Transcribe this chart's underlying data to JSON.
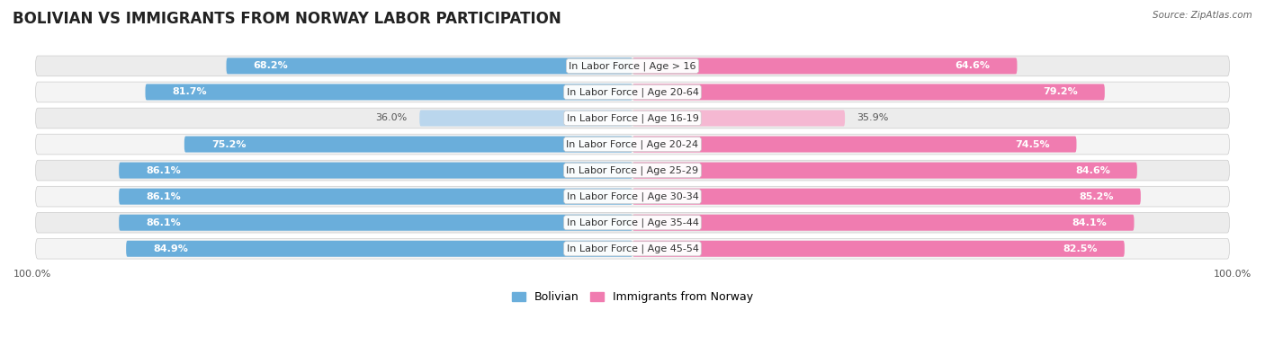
{
  "title": "BOLIVIAN VS IMMIGRANTS FROM NORWAY LABOR PARTICIPATION",
  "source": "Source: ZipAtlas.com",
  "categories": [
    "In Labor Force | Age > 16",
    "In Labor Force | Age 20-64",
    "In Labor Force | Age 16-19",
    "In Labor Force | Age 20-24",
    "In Labor Force | Age 25-29",
    "In Labor Force | Age 30-34",
    "In Labor Force | Age 35-44",
    "In Labor Force | Age 45-54"
  ],
  "bolivian_values": [
    68.2,
    81.7,
    36.0,
    75.2,
    86.1,
    86.1,
    86.1,
    84.9
  ],
  "norway_values": [
    64.6,
    79.2,
    35.9,
    74.5,
    84.6,
    85.2,
    84.1,
    82.5
  ],
  "bolivian_color": "#6aaedb",
  "bolivian_light_color": "#bad6ed",
  "norway_color": "#f07cb0",
  "norway_light_color": "#f5b8d2",
  "row_bg_color": "#e8e8e8",
  "row_bg_odd": "#f0f0f0",
  "row_bg_even": "#e4e4e4",
  "max_value": 100.0,
  "title_fontsize": 12,
  "label_fontsize": 8,
  "value_fontsize": 8,
  "axis_label_fontsize": 8,
  "legend_fontsize": 9,
  "bar_height": 0.62
}
